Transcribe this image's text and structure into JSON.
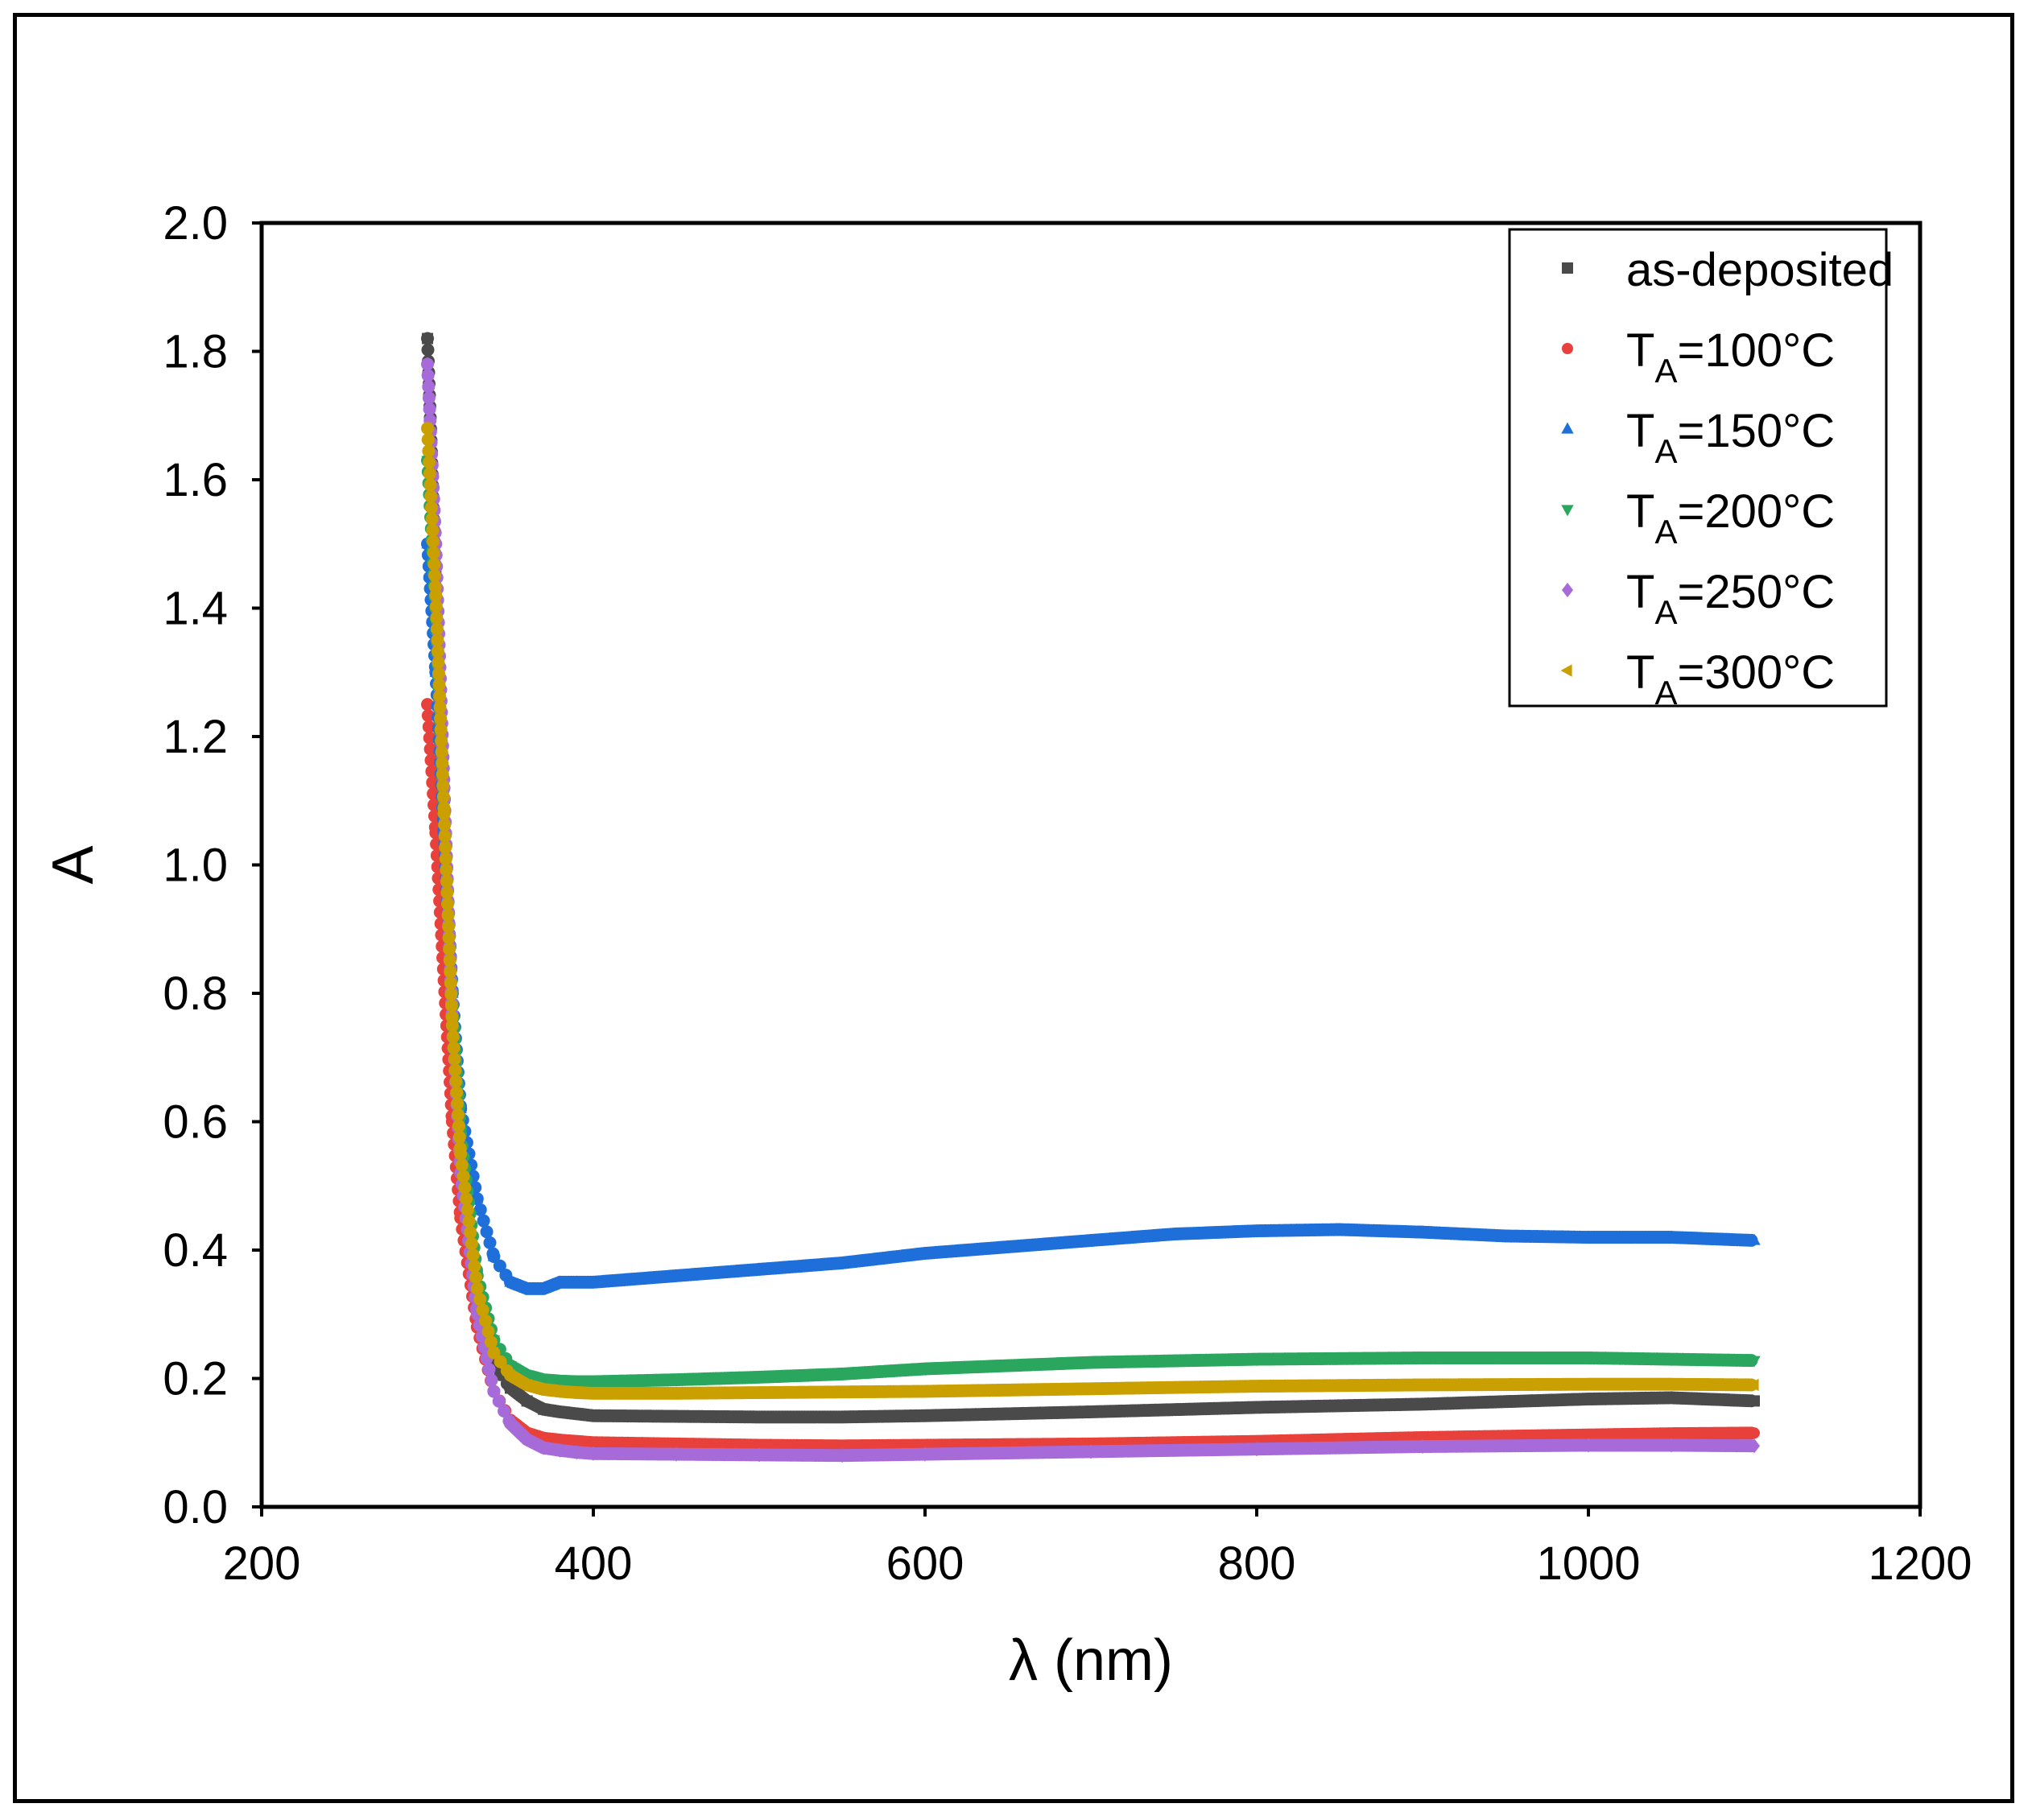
{
  "chart_data": {
    "type": "scatter",
    "title": "",
    "xlabel": "λ (nm)",
    "ylabel": "A",
    "xlim": [
      200,
      1200
    ],
    "ylim": [
      0.0,
      2.0
    ],
    "xticks": [
      "200",
      "400",
      "600",
      "800",
      "1000",
      "1200"
    ],
    "yticks": [
      "0.0",
      "0.2",
      "0.4",
      "0.6",
      "0.8",
      "1.0",
      "1.2",
      "1.4",
      "1.6",
      "1.8",
      "2.0"
    ],
    "grid": false,
    "legend_position": "top-right",
    "series": [
      {
        "name": "as-deposited",
        "label_main": "as-deposited",
        "label_sub": "",
        "label_tail": "",
        "color": "#4a4a4a",
        "marker": "square",
        "x": [
          300,
          305,
          310,
          315,
          320,
          330,
          340,
          350,
          360,
          370,
          380,
          390,
          400,
          450,
          500,
          550,
          600,
          700,
          800,
          900,
          1000,
          1050,
          1100
        ],
        "y": [
          1.82,
          1.45,
          1.05,
          0.72,
          0.52,
          0.32,
          0.22,
          0.185,
          0.165,
          0.152,
          0.148,
          0.145,
          0.142,
          0.141,
          0.14,
          0.14,
          0.142,
          0.148,
          0.155,
          0.16,
          0.168,
          0.17,
          0.165
        ]
      },
      {
        "name": "TA=100°C",
        "label_main": "T",
        "label_sub": "A",
        "label_tail": "=100°C",
        "color": "#e8403a",
        "marker": "circle",
        "x": [
          300,
          305,
          310,
          315,
          320,
          330,
          340,
          350,
          360,
          370,
          380,
          390,
          400,
          450,
          500,
          550,
          600,
          700,
          800,
          900,
          1000,
          1050,
          1100
        ],
        "y": [
          1.25,
          1.05,
          0.82,
          0.6,
          0.45,
          0.28,
          0.18,
          0.135,
          0.115,
          0.107,
          0.104,
          0.102,
          0.1,
          0.098,
          0.096,
          0.095,
          0.096,
          0.098,
          0.102,
          0.108,
          0.112,
          0.114,
          0.115
        ]
      },
      {
        "name": "TA=150°C",
        "label_main": "T",
        "label_sub": "A",
        "label_tail": "=150°C",
        "color": "#1e6fd9",
        "marker": "triangle-up",
        "x": [
          300,
          305,
          310,
          315,
          320,
          330,
          340,
          350,
          360,
          370,
          380,
          390,
          400,
          450,
          500,
          550,
          600,
          650,
          700,
          750,
          800,
          850,
          900,
          950,
          1000,
          1050,
          1100
        ],
        "y": [
          1.5,
          1.3,
          1.05,
          0.8,
          0.62,
          0.48,
          0.39,
          0.35,
          0.34,
          0.34,
          0.35,
          0.35,
          0.35,
          0.36,
          0.37,
          0.38,
          0.395,
          0.405,
          0.415,
          0.425,
          0.43,
          0.432,
          0.428,
          0.422,
          0.42,
          0.42,
          0.415
        ]
      },
      {
        "name": "TA=200°C",
        "label_main": "T",
        "label_sub": "A",
        "label_tail": "=200°C",
        "color": "#2aa65e",
        "marker": "triangle-down",
        "x": [
          300,
          305,
          310,
          315,
          320,
          330,
          340,
          350,
          360,
          370,
          380,
          390,
          400,
          450,
          500,
          550,
          600,
          700,
          800,
          900,
          1000,
          1050,
          1100
        ],
        "y": [
          1.63,
          1.4,
          1.1,
          0.78,
          0.58,
          0.36,
          0.26,
          0.22,
          0.205,
          0.198,
          0.196,
          0.195,
          0.195,
          0.198,
          0.202,
          0.207,
          0.215,
          0.225,
          0.23,
          0.232,
          0.232,
          0.23,
          0.228
        ]
      },
      {
        "name": "TA=250°C",
        "label_main": "T",
        "label_sub": "A",
        "label_tail": "=250°C",
        "color": "#a66bd9",
        "marker": "diamond",
        "x": [
          300,
          305,
          310,
          315,
          320,
          330,
          340,
          350,
          360,
          370,
          380,
          390,
          400,
          450,
          500,
          550,
          600,
          700,
          800,
          900,
          1000,
          1050,
          1100
        ],
        "y": [
          1.78,
          1.5,
          1.12,
          0.75,
          0.52,
          0.3,
          0.18,
          0.13,
          0.105,
          0.092,
          0.088,
          0.085,
          0.083,
          0.082,
          0.081,
          0.08,
          0.082,
          0.086,
          0.09,
          0.094,
          0.096,
          0.096,
          0.095
        ]
      },
      {
        "name": "TA=300°C",
        "label_main": "T",
        "label_sub": "A",
        "label_tail": "=300°C",
        "color": "#c9a000",
        "marker": "triangle-left",
        "x": [
          300,
          305,
          310,
          315,
          320,
          330,
          340,
          350,
          360,
          370,
          380,
          390,
          400,
          450,
          500,
          550,
          600,
          700,
          800,
          900,
          1000,
          1050,
          1100
        ],
        "y": [
          1.68,
          1.42,
          1.08,
          0.75,
          0.55,
          0.34,
          0.24,
          0.205,
          0.19,
          0.183,
          0.18,
          0.178,
          0.177,
          0.177,
          0.178,
          0.179,
          0.18,
          0.184,
          0.188,
          0.19,
          0.191,
          0.191,
          0.19
        ]
      }
    ]
  }
}
